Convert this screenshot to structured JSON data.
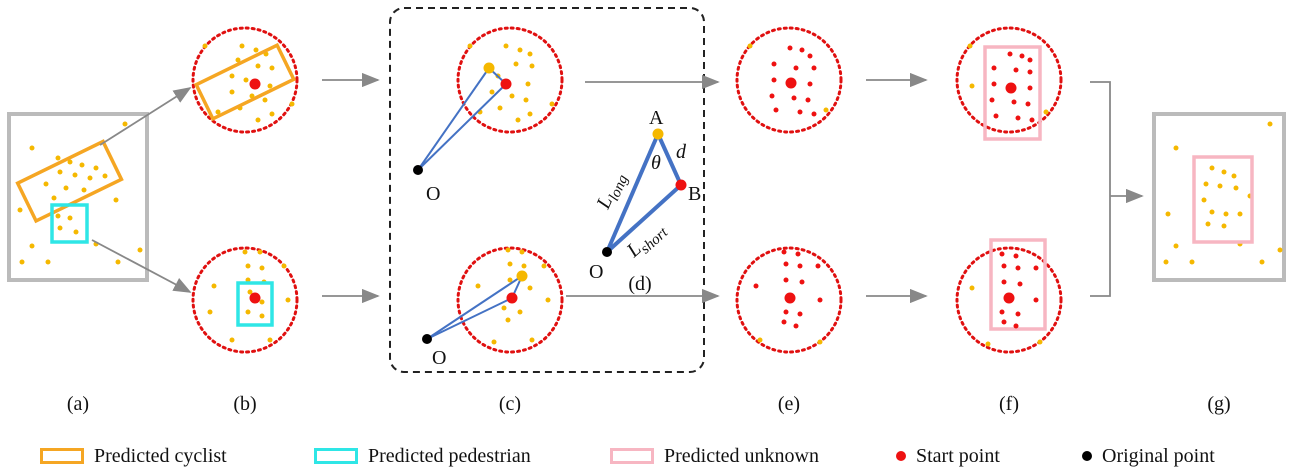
{
  "panel_labels": {
    "a": "(a)",
    "b": "(b)",
    "c": "(c)",
    "d": "(d)",
    "e": "(e)",
    "f": "(f)",
    "g": "(g)"
  },
  "geometry_labels": {
    "origin": "O",
    "point_a": "A",
    "point_b": "B",
    "distance": "d",
    "angle": "θ",
    "long_base": "L",
    "long_sub": "long",
    "short_base": "L",
    "short_sub": "short"
  },
  "legend": {
    "cyclist": "Predicted cyclist",
    "pedestrian": "Predicted pedestrian",
    "unknown": "Predicted unknown",
    "start_point": "Start point",
    "original_point": "Original point"
  },
  "colors": {
    "cyclist": "#F5A623",
    "pedestrian": "#2EE6E6",
    "unknown": "#F7B6C2",
    "start_point": "#EE1111",
    "original_point": "#000000",
    "point": "#F5B800",
    "frame": "#BBBBBB",
    "arrow": "#888888",
    "line": "#4472C4"
  }
}
